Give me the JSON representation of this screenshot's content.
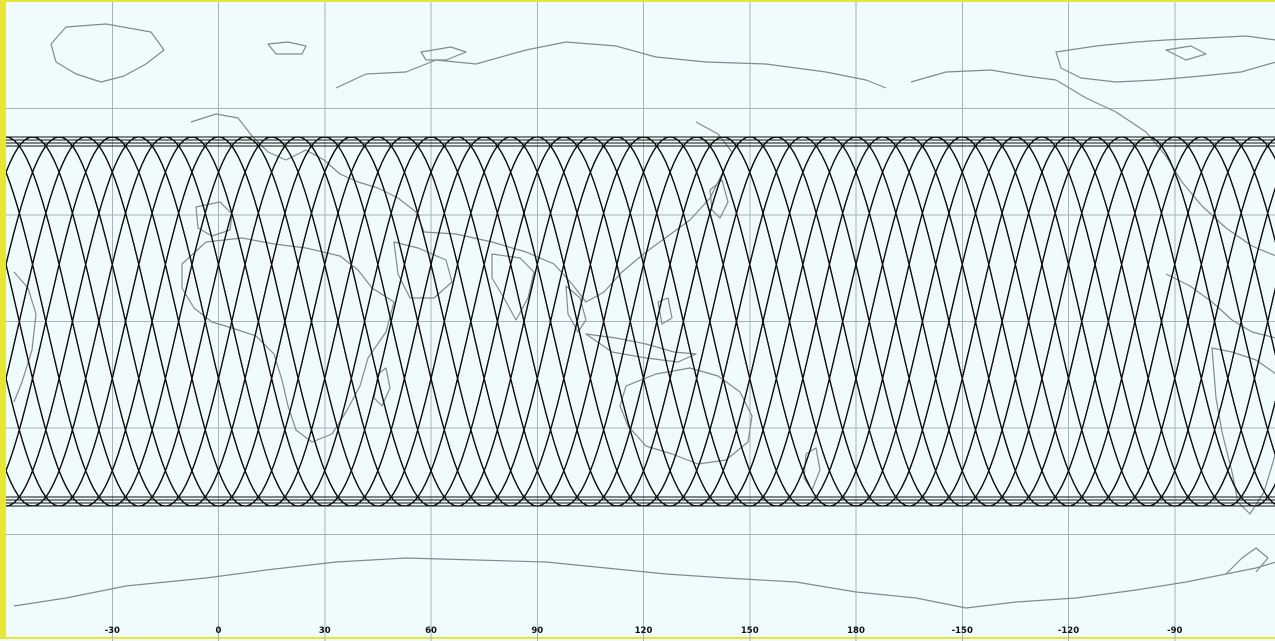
{
  "map": {
    "type": "satellite-ground-track-world-map",
    "projection": "equirectangular",
    "longitude_range_deg": [
      -60,
      300
    ],
    "latitude_range_deg": [
      -90,
      90
    ],
    "coverage_band_latitude_deg": [
      -52,
      52
    ],
    "ground_track_crossings_per_row": 24,
    "grid_spacing_deg": 30,
    "colors": {
      "background": "#f0fbfc",
      "frame": "#e6e63a",
      "grid": "#a8b2bd",
      "coastline": "#7f8a93",
      "ground_track": "#111111"
    },
    "longitude_tick_labels": [
      "-30",
      "0",
      "30",
      "60",
      "90",
      "120",
      "150",
      "180",
      "-150",
      "-120",
      "-90"
    ]
  }
}
